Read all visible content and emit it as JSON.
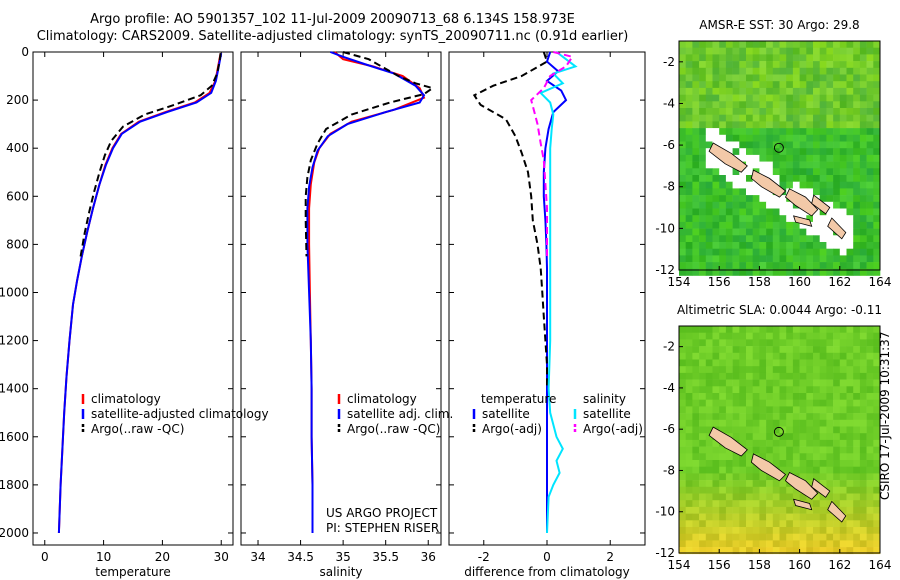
{
  "header": {
    "line1": "Argo profile: AO 5901357_102 11-Jul-2009 20090713_68 6.134S 158.973E",
    "line2": "Climatology: CARS2009. Satellite-adjusted climatology: synTS_20090711.nc (0.91d earlier)"
  },
  "side_label": "CSIRO 17-Jul-2009 10:31:37",
  "colors": {
    "climatology": "#ff0000",
    "satellite": "#0000ff",
    "argo": "#000000",
    "salinity_satellite": "#00e5ff",
    "salinity_argo": "#ff00ff"
  },
  "chart_data": [
    {
      "type": "line",
      "xlabel": "temperature",
      "ylabel": "",
      "xlim": [
        -2,
        32
      ],
      "ylim": [
        2050,
        0
      ],
      "y_inverted": true,
      "xticks": [
        0,
        10,
        20,
        30
      ],
      "yticks": [
        0,
        200,
        400,
        600,
        800,
        1000,
        1200,
        1400,
        1600,
        1800,
        2000
      ],
      "legend": {
        "placement": "lower-center",
        "entries": [
          "climatology",
          "satellite-adjusted climatology",
          "Argo(..raw -QC)"
        ]
      },
      "series": [
        {
          "name": "climatology",
          "style": "solid",
          "color": "#ff0000",
          "points": [
            [
              29.9,
              5
            ],
            [
              29.7,
              30
            ],
            [
              29.4,
              70
            ],
            [
              29.0,
              120
            ],
            [
              28.0,
              170
            ],
            [
              25.5,
              210
            ],
            [
              20.5,
              250
            ],
            [
              16,
              290
            ],
            [
              13,
              340
            ],
            [
              11.5,
              400
            ],
            [
              10.3,
              470
            ],
            [
              9.3,
              550
            ],
            [
              8.2,
              650
            ],
            [
              7.2,
              750
            ],
            [
              6.3,
              850
            ],
            [
              5.5,
              950
            ],
            [
              4.8,
              1050
            ],
            [
              4.2,
              1200
            ],
            [
              3.7,
              1350
            ],
            [
              3.3,
              1500
            ],
            [
              3.0,
              1650
            ],
            [
              2.7,
              1800
            ],
            [
              2.4,
              2000
            ]
          ]
        },
        {
          "name": "satellite-adjusted climatology",
          "style": "solid",
          "color": "#0000ff",
          "points": [
            [
              30.0,
              5
            ],
            [
              29.8,
              30
            ],
            [
              29.5,
              70
            ],
            [
              29.1,
              120
            ],
            [
              28.3,
              170
            ],
            [
              25.8,
              210
            ],
            [
              20.8,
              250
            ],
            [
              16.2,
              290
            ],
            [
              13.1,
              340
            ],
            [
              11.6,
              400
            ],
            [
              10.4,
              470
            ],
            [
              9.3,
              550
            ],
            [
              8.2,
              650
            ],
            [
              7.2,
              750
            ],
            [
              6.3,
              850
            ],
            [
              5.5,
              950
            ],
            [
              4.8,
              1050
            ],
            [
              4.2,
              1200
            ],
            [
              3.7,
              1350
            ],
            [
              3.3,
              1500
            ],
            [
              3.0,
              1650
            ],
            [
              2.7,
              1800
            ],
            [
              2.4,
              2000
            ]
          ]
        },
        {
          "name": "Argo(..raw -QC)",
          "style": "dashed",
          "color": "#000000",
          "points": [
            [
              29.9,
              5
            ],
            [
              29.7,
              40
            ],
            [
              29.3,
              90
            ],
            [
              28.4,
              140
            ],
            [
              26.5,
              180
            ],
            [
              22.0,
              220
            ],
            [
              17.0,
              260
            ],
            [
              13.3,
              310
            ],
            [
              11.3,
              370
            ],
            [
              10.2,
              430
            ],
            [
              9.3,
              500
            ],
            [
              8.4,
              580
            ],
            [
              7.6,
              660
            ],
            [
              6.8,
              750
            ],
            [
              6.1,
              850
            ]
          ]
        }
      ]
    },
    {
      "type": "line",
      "xlabel": "salinity",
      "ylabel": "",
      "xlim": [
        33.8,
        36.15
      ],
      "ylim": [
        2050,
        0
      ],
      "y_inverted": true,
      "xticks": [
        34,
        34.5,
        35,
        35.5,
        36
      ],
      "legend": {
        "placement": "lower-center",
        "entries": [
          "climatology",
          "satellite adj. clim.",
          "Argo(..raw -QC)"
        ]
      },
      "annotation": [
        "US ARGO PROJECT",
        "PI: STEPHEN RISER"
      ],
      "series": [
        {
          "name": "climatology",
          "style": "solid",
          "color": "#ff0000",
          "points": [
            [
              34.9,
              0
            ],
            [
              35.0,
              30
            ],
            [
              35.35,
              60
            ],
            [
              35.7,
              100
            ],
            [
              35.9,
              150
            ],
            [
              35.95,
              190
            ],
            [
              35.6,
              240
            ],
            [
              35.1,
              290
            ],
            [
              34.85,
              340
            ],
            [
              34.72,
              400
            ],
            [
              34.66,
              460
            ],
            [
              34.62,
              550
            ],
            [
              34.6,
              650
            ],
            [
              34.6,
              800
            ],
            [
              34.61,
              1000
            ],
            [
              34.62,
              1200
            ],
            [
              34.63,
              1400
            ],
            [
              34.63,
              1600
            ],
            [
              34.64,
              1800
            ],
            [
              34.64,
              2000
            ]
          ]
        },
        {
          "name": "satellite adj. clim.",
          "style": "solid",
          "color": "#0000ff",
          "points": [
            [
              34.85,
              0
            ],
            [
              35.0,
              20
            ],
            [
              35.25,
              50
            ],
            [
              35.6,
              90
            ],
            [
              35.85,
              140
            ],
            [
              35.95,
              180
            ],
            [
              35.9,
              210
            ],
            [
              35.5,
              250
            ],
            [
              35.05,
              300
            ],
            [
              34.82,
              350
            ],
            [
              34.7,
              410
            ],
            [
              34.64,
              480
            ],
            [
              34.6,
              560
            ],
            [
              34.58,
              650
            ],
            [
              34.58,
              800
            ],
            [
              34.6,
              1000
            ],
            [
              34.62,
              1200
            ],
            [
              34.63,
              1400
            ],
            [
              34.63,
              1600
            ],
            [
              34.64,
              1800
            ],
            [
              34.64,
              2000
            ]
          ]
        },
        {
          "name": "Argo(..raw -QC)",
          "style": "dashed",
          "color": "#000000",
          "points": [
            [
              35.0,
              0
            ],
            [
              35.3,
              30
            ],
            [
              35.45,
              60
            ],
            [
              35.65,
              100
            ],
            [
              35.85,
              130
            ],
            [
              36.05,
              150
            ],
            [
              35.95,
              175
            ],
            [
              35.55,
              210
            ],
            [
              35.1,
              260
            ],
            [
              34.8,
              320
            ],
            [
              34.7,
              380
            ],
            [
              34.62,
              450
            ],
            [
              34.58,
              520
            ],
            [
              34.56,
              600
            ],
            [
              34.56,
              700
            ],
            [
              34.57,
              850
            ]
          ]
        }
      ]
    },
    {
      "type": "line",
      "xlabel": "difference from climatology",
      "ylabel": "",
      "xlim": [
        -3.1,
        3.1
      ],
      "ylim": [
        2050,
        0
      ],
      "y_inverted": true,
      "xticks": [
        -2,
        0,
        2
      ],
      "legend": {
        "placement": "lower-center",
        "temperature_title": "temperature",
        "temperature_entries": [
          "satellite",
          "Argo(-adj)"
        ],
        "salinity_title": "salinity",
        "salinity_entries": [
          "satellite",
          "Argo(-adj)"
        ]
      },
      "series": [
        {
          "name": "temperature satellite",
          "style": "solid",
          "color": "#0000ff",
          "points": [
            [
              0.1,
              0
            ],
            [
              0.0,
              40
            ],
            [
              0.35,
              80
            ],
            [
              0.0,
              120
            ],
            [
              0.45,
              160
            ],
            [
              0.6,
              200
            ],
            [
              0.2,
              250
            ],
            [
              0.05,
              320
            ],
            [
              -0.05,
              400
            ],
            [
              -0.1,
              500
            ],
            [
              -0.1,
              600
            ],
            [
              -0.05,
              700
            ],
            [
              -0.02,
              800
            ],
            [
              0.0,
              900
            ],
            [
              0.0,
              1000
            ],
            [
              0.0,
              1200
            ],
            [
              0.0,
              1400
            ],
            [
              0.0,
              1600
            ],
            [
              0.0,
              1800
            ],
            [
              0.0,
              2000
            ]
          ]
        },
        {
          "name": "temperature Argo(-adj)",
          "style": "dashed",
          "color": "#000000",
          "points": [
            [
              -0.1,
              0
            ],
            [
              0.0,
              40
            ],
            [
              -0.8,
              100
            ],
            [
              -1.7,
              140
            ],
            [
              -2.3,
              180
            ],
            [
              -2.1,
              220
            ],
            [
              -1.3,
              280
            ],
            [
              -1.0,
              350
            ],
            [
              -0.8,
              420
            ],
            [
              -0.6,
              500
            ],
            [
              -0.5,
              600
            ],
            [
              -0.45,
              700
            ],
            [
              -0.3,
              800
            ],
            [
              -0.2,
              900
            ],
            [
              -0.15,
              1000
            ],
            [
              -0.1,
              1100
            ],
            [
              -0.05,
              1200
            ],
            [
              0.0,
              1300
            ],
            [
              0.0,
              1400
            ]
          ]
        },
        {
          "name": "salinity satellite",
          "style": "solid",
          "color": "#00e5ff",
          "points": [
            [
              0.3,
              0
            ],
            [
              0.6,
              30
            ],
            [
              0.9,
              60
            ],
            [
              0.2,
              90
            ],
            [
              0.5,
              130
            ],
            [
              -0.2,
              170
            ],
            [
              0.1,
              210
            ],
            [
              0.2,
              260
            ],
            [
              0.15,
              320
            ],
            [
              0.1,
              400
            ],
            [
              0.1,
              500
            ],
            [
              0.1,
              600
            ],
            [
              0.1,
              700
            ],
            [
              0.1,
              800
            ],
            [
              0.1,
              900
            ],
            [
              0.1,
              1000
            ],
            [
              0.1,
              1200
            ],
            [
              0.05,
              1400
            ],
            [
              0.1,
              1500
            ],
            [
              0.3,
              1600
            ],
            [
              0.5,
              1650
            ],
            [
              0.3,
              1700
            ],
            [
              0.4,
              1750
            ],
            [
              0.2,
              1800
            ],
            [
              0.05,
              1850
            ],
            [
              0.0,
              2000
            ]
          ]
        },
        {
          "name": "salinity Argo(-adj)",
          "style": "dashed",
          "color": "#ff00ff",
          "points": [
            [
              0.2,
              0
            ],
            [
              0.8,
              20
            ],
            [
              0.6,
              60
            ],
            [
              0.1,
              100
            ],
            [
              -0.1,
              150
            ],
            [
              -0.5,
              200
            ],
            [
              -0.4,
              250
            ],
            [
              -0.3,
              300
            ],
            [
              -0.2,
              380
            ],
            [
              -0.1,
              450
            ],
            [
              -0.05,
              550
            ],
            [
              0.0,
              650
            ],
            [
              0.0,
              750
            ],
            [
              0.0,
              850
            ]
          ]
        }
      ]
    },
    {
      "type": "heatmap",
      "title": "AMSR-E SST: 30 Argo: 29.8",
      "xlim": [
        154,
        164
      ],
      "ylim": [
        -12,
        -1
      ],
      "xticks": [
        154,
        156,
        158,
        160,
        162,
        164
      ],
      "yticks": [
        -2,
        -4,
        -6,
        -8,
        -10,
        -12
      ],
      "marker": {
        "lon": 158.97,
        "lat": -6.13
      }
    },
    {
      "type": "heatmap",
      "title": "Altimetric SLA: 0.0044 Argo: -0.11",
      "xlim": [
        154,
        164
      ],
      "ylim": [
        -12,
        -1
      ],
      "xticks": [
        154,
        156,
        158,
        160,
        162,
        164
      ],
      "yticks": [
        -2,
        -4,
        -6,
        -8,
        -10,
        -12
      ],
      "marker": {
        "lon": 158.97,
        "lat": -6.13
      }
    }
  ]
}
